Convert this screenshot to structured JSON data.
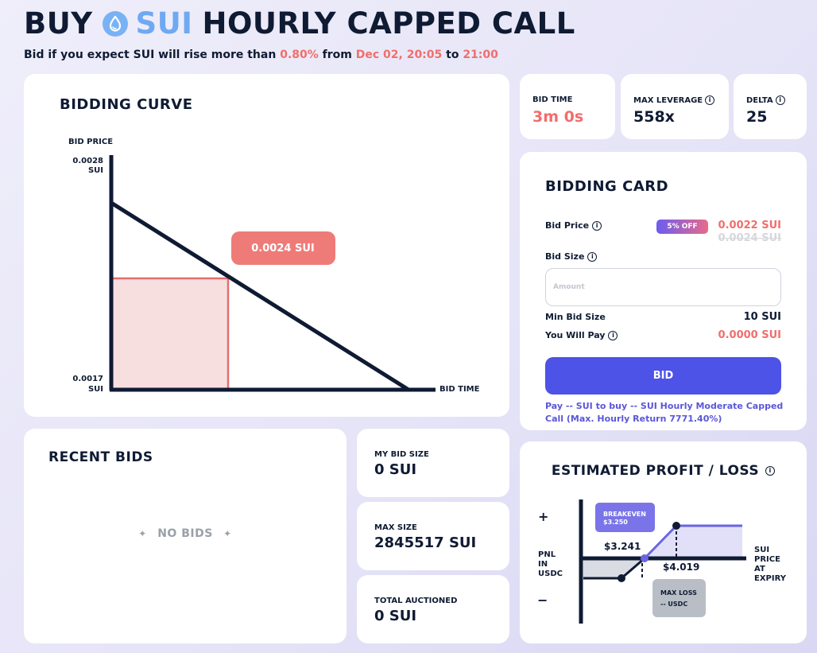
{
  "header": {
    "title_prefix": "BUY",
    "title_coin": "SUI",
    "title_suffix": "HOURLY CAPPED CALL",
    "subtitle_part1": "Bid if you expect SUI will rise more than",
    "subtitle_pct": "0.80%",
    "subtitle_from": "from",
    "subtitle_start": "Dec 02, 20:05",
    "subtitle_to": "to",
    "subtitle_end": "21:00"
  },
  "bidding_curve": {
    "title": "BIDDING CURVE",
    "y_label": "BID PRICE",
    "y_max_value": "0.0028",
    "y_max_unit": "SUI",
    "y_min_value": "0.0017",
    "y_min_unit": "SUI",
    "x_label": "BID TIME",
    "current_price": "0.0024 SUI"
  },
  "stats": {
    "bid_time": {
      "label": "BID TIME",
      "value": "3m 0s"
    },
    "max_leverage": {
      "label": "MAX LEVERAGE",
      "value": "558x"
    },
    "delta": {
      "label": "DELTA",
      "value": "25"
    }
  },
  "bidding_card": {
    "title": "BIDDING CARD",
    "bid_price_label": "Bid Price",
    "discount_badge": "5% OFF",
    "bid_price_value": "0.0022 SUI",
    "bid_price_original": "0.0024 SUI",
    "bid_size_label": "Bid Size",
    "amount_placeholder": "Amount",
    "min_bid_label": "Min Bid Size",
    "min_bid_value": "10 SUI",
    "you_pay_label": "You Will Pay",
    "you_pay_value": "0.0000 SUI",
    "bid_button": "BID",
    "pay_note": "Pay -- SUI to buy -- SUI Hourly Moderate Capped Call (Max. Hourly Return 7771.40%)"
  },
  "recent_bids": {
    "title": "RECENT BIDS",
    "empty_text": "NO BIDS"
  },
  "my_bid_size": {
    "label": "MY BID SIZE",
    "value": "0 SUI"
  },
  "max_size": {
    "label": "MAX SIZE",
    "value": "2845517 SUI"
  },
  "total_auctioned": {
    "label": "TOTAL AUCTIONED",
    "value": "0 SUI"
  },
  "pnl": {
    "title": "ESTIMATED PROFIT / LOSS",
    "plus": "+",
    "minus": "−",
    "y_label": [
      "PNL",
      "IN",
      "USDC"
    ],
    "x_label": [
      "SUI",
      "PRICE",
      "AT",
      "EXPIRY"
    ],
    "breakeven_label": "BREAKEVEN",
    "breakeven_value": "$3.250",
    "strike_value": "$3.241",
    "cap_value": "$4.019",
    "max_loss_label": "MAX LOSS",
    "max_loss_value": "-- USDC"
  },
  "colors": {
    "navy": "#0f1b33",
    "accent_red": "#ef6f6c",
    "sui_blue": "#6fa9f2",
    "bid_button": "#4d53e6",
    "breakeven_badge": "#7a74e8",
    "max_loss_badge": "#b9bec6"
  },
  "icons": [
    "sui-drop-icon",
    "info-icon",
    "sparkle-icon"
  ]
}
